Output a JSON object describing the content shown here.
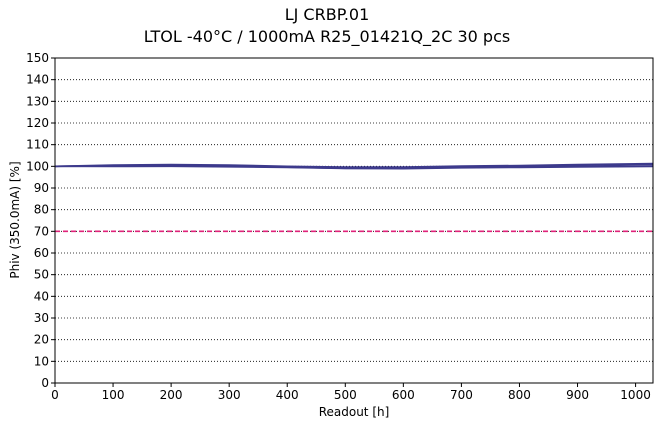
{
  "chart_data": {
    "type": "line",
    "title": "LJ CRBP.01",
    "subtitle": "LTOL -40°C / 1000mA  R25_01421Q_2C  30 pcs",
    "xlabel": "Readout [h]",
    "ylabel": "Phiv (350.0mA) [%]",
    "xlim": [
      0,
      1030
    ],
    "ylim": [
      0,
      150
    ],
    "xticks": [
      0,
      100,
      200,
      300,
      400,
      500,
      600,
      700,
      800,
      900,
      1000
    ],
    "yticks": [
      0,
      10,
      20,
      30,
      40,
      50,
      60,
      70,
      80,
      90,
      100,
      110,
      120,
      130,
      140,
      150
    ],
    "grid": "horizontal dotted",
    "series": [
      {
        "color": "#3d3a8c",
        "x": [
          0,
          100,
          200,
          300,
          400,
          500,
          600,
          700,
          800,
          900,
          1030
        ],
        "y": [
          100,
          100.4,
          100.6,
          100.3,
          99.8,
          99.4,
          99.4,
          99.9,
          100.1,
          100.5,
          101.0
        ]
      },
      {
        "color": "#3d3a8c",
        "x": [
          0,
          100,
          200,
          300,
          400,
          500,
          600,
          700,
          800,
          900,
          1030
        ],
        "y": [
          100,
          100.1,
          100.2,
          100.0,
          99.6,
          99.1,
          99.1,
          99.5,
          99.7,
          99.9,
          100.2
        ]
      },
      {
        "color": "#3d3a8c",
        "x": [
          0,
          100,
          200,
          300,
          400,
          500,
          600,
          700,
          800,
          900,
          1030
        ],
        "y": [
          100,
          100.6,
          100.8,
          100.6,
          100.0,
          99.7,
          99.7,
          100.1,
          100.4,
          100.8,
          101.3
        ]
      },
      {
        "color": "#3d3a8c",
        "x": [
          0,
          100,
          200,
          300,
          400,
          500,
          600,
          700,
          800,
          900,
          1030
        ],
        "y": [
          100,
          99.9,
          100.0,
          99.8,
          99.5,
          99.0,
          98.9,
          99.3,
          99.5,
          99.7,
          99.9
        ]
      }
    ],
    "reference_lines": [
      {
        "y": 70,
        "color": "#e0237a",
        "style": "dashed"
      }
    ]
  }
}
